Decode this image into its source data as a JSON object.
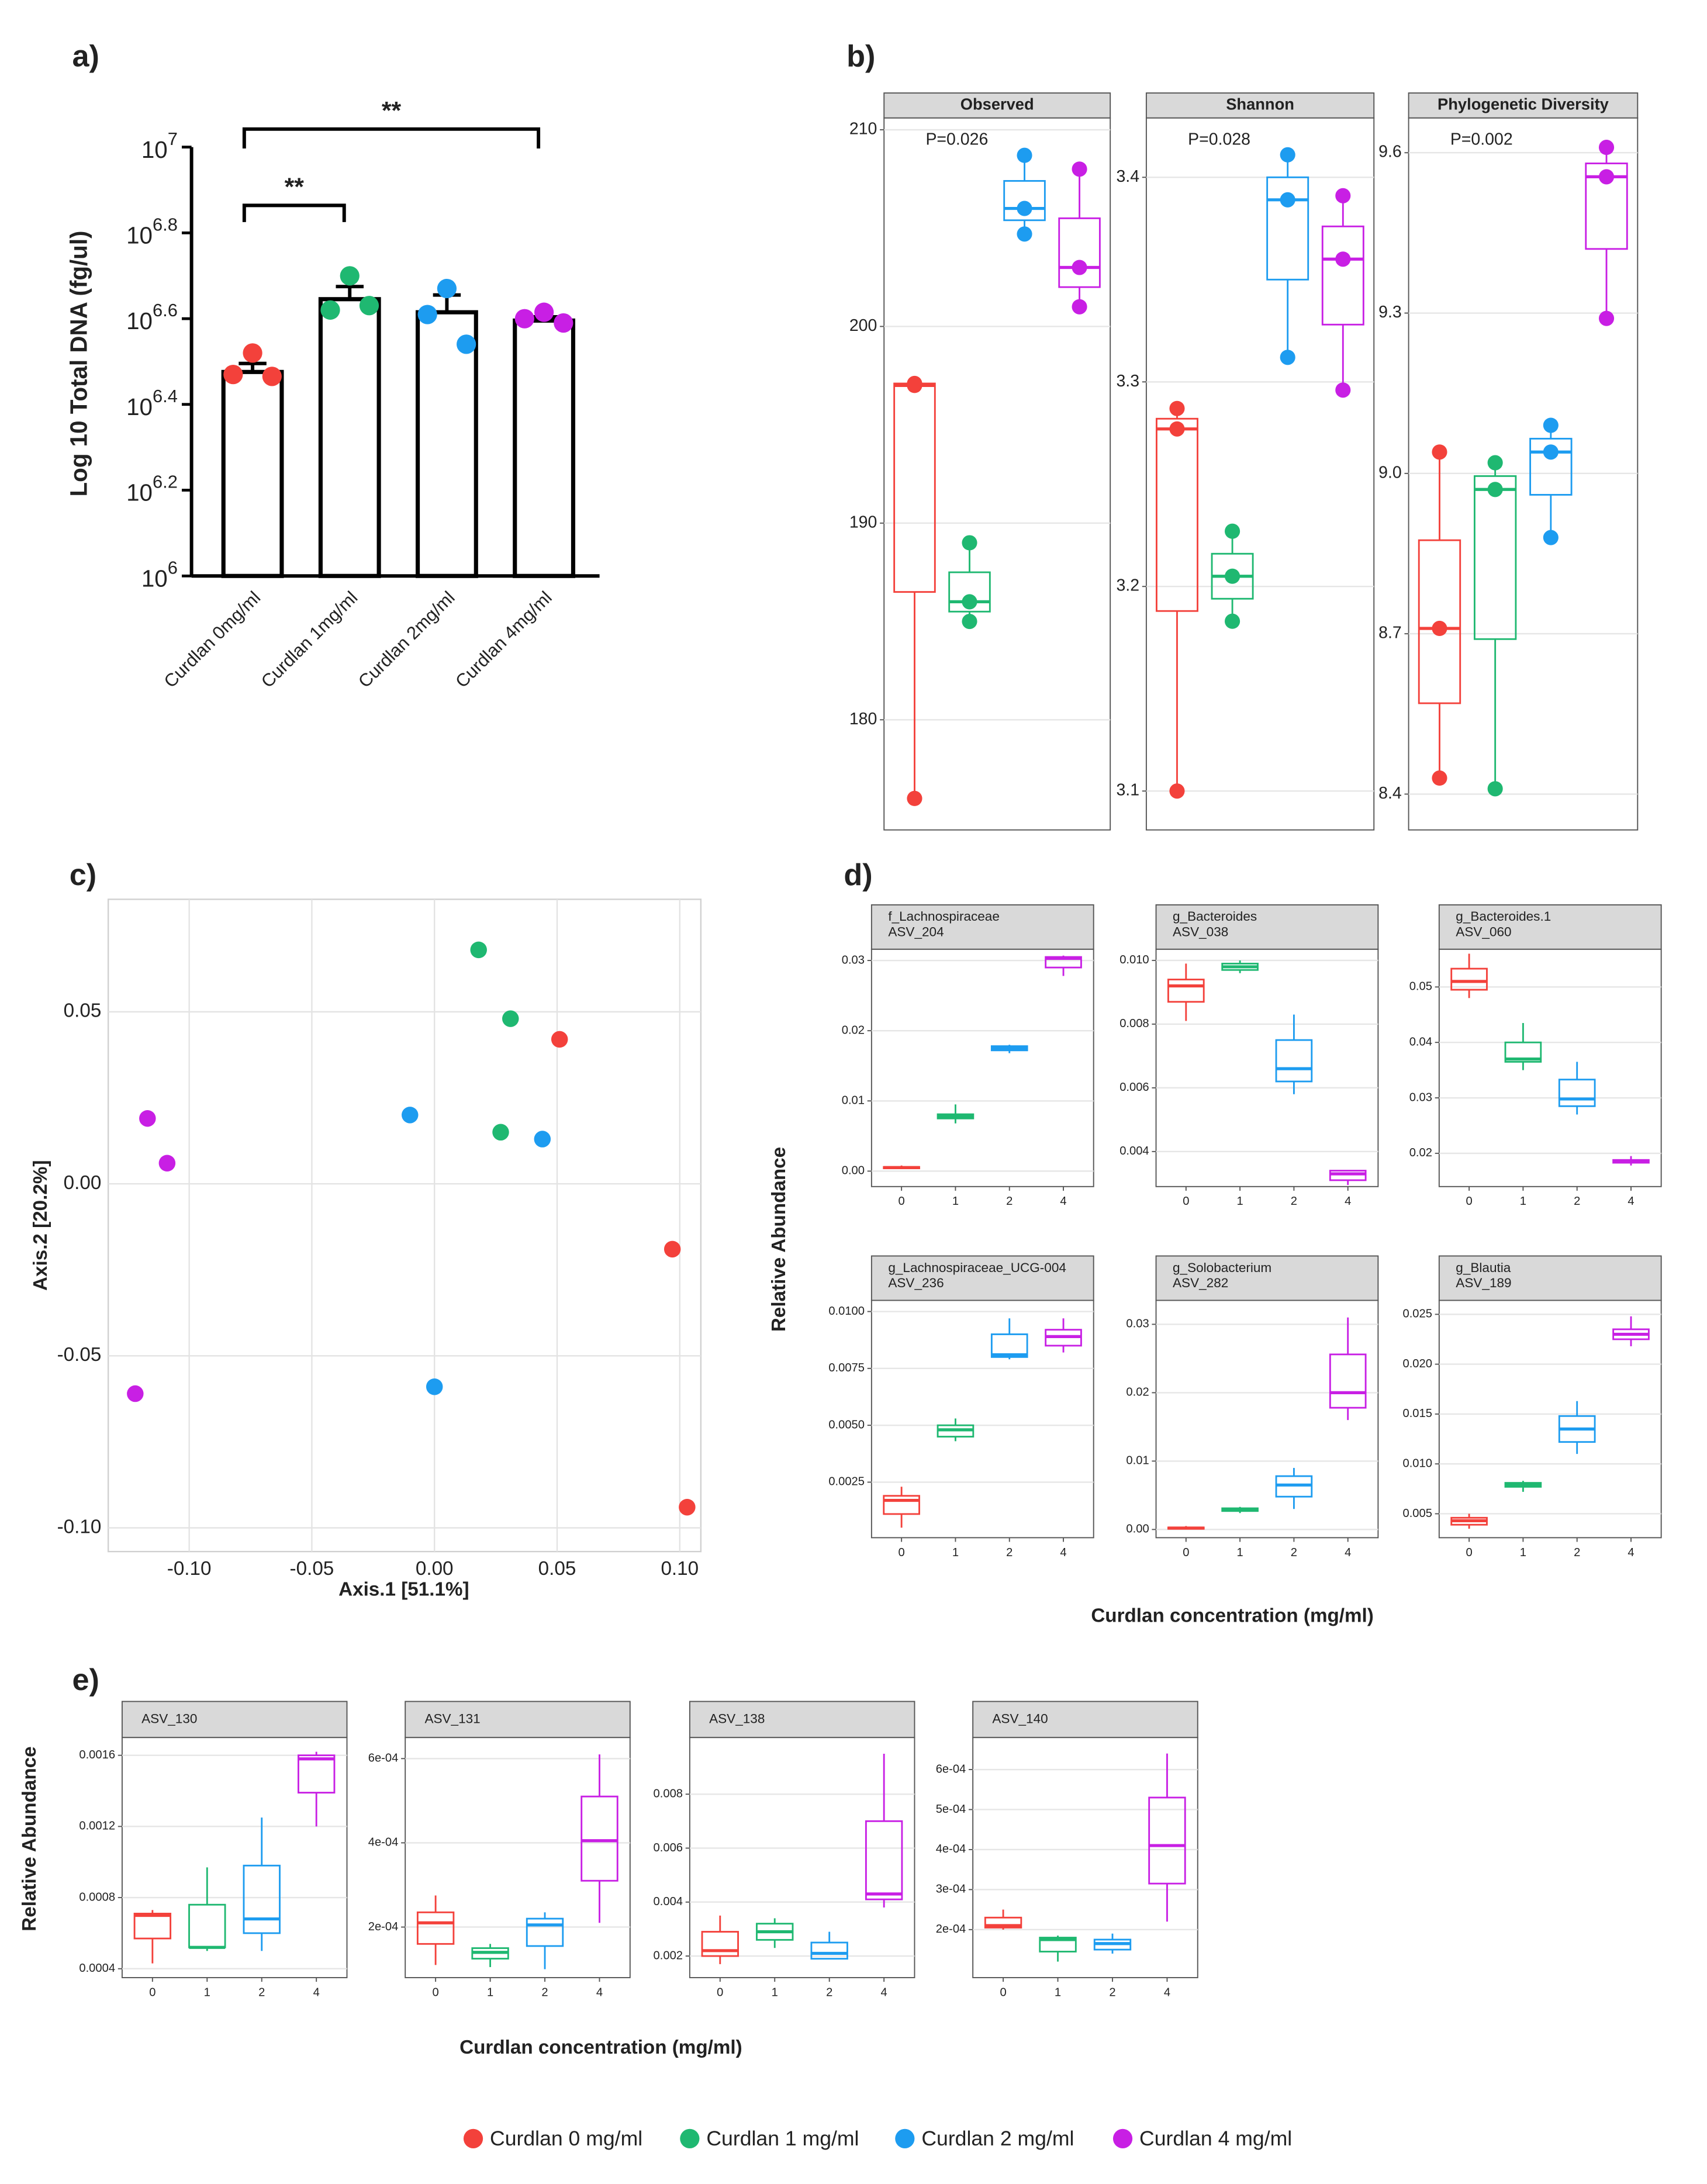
{
  "legend": [
    {
      "name": "Curdlan 0 mg/ml",
      "color": "#f3413b"
    },
    {
      "name": "Curdlan 1 mg/ml",
      "color": "#1fb871"
    },
    {
      "name": "Curdlan 2 mg/ml",
      "color": "#1d9cf0"
    },
    {
      "name": "Curdlan 4 mg/ml",
      "color": "#c81fe4"
    }
  ],
  "chart_data": [
    {
      "type": "bar",
      "label": "a)",
      "ylabel": "Log 10 Total DNA (fg/ul)",
      "categories": [
        "Curdlan 0mg/ml",
        "Curdlan 1mg/ml",
        "Curdlan 2mg/ml",
        "Curdlan 4mg/ml"
      ],
      "values": [
        2990000,
        4420000,
        4120000,
        3940000
      ],
      "errors": [
        140000,
        310000,
        400000,
        80000
      ],
      "points": [
        [
          3310000,
          2950000,
          2920000
        ],
        [
          5010000,
          4170000,
          4270000
        ],
        [
          4680000,
          4070000,
          3470000
        ],
        [
          4120000,
          3980000,
          3890000
        ]
      ],
      "log_scale": true,
      "ylim": [
        1000000,
        10000000
      ],
      "yticks": [
        {
          "value": 1000000,
          "label": "10^6"
        },
        {
          "value": 1584893,
          "label": "10^6.2"
        },
        {
          "value": 2511886,
          "label": "10^6.4"
        },
        {
          "value": 3981072,
          "label": "10^6.6"
        },
        {
          "value": 6309573,
          "label": "10^6.8"
        },
        {
          "value": 10000000,
          "label": "10^7"
        }
      ],
      "color": "#000000",
      "annotations": [
        "**",
        "**"
      ]
    },
    {
      "type": "box",
      "label": "b)",
      "title": "Observed",
      "annotation": "P=0.026",
      "ylim": [
        174.4,
        210.6
      ],
      "yticks": [
        180,
        190,
        200,
        210
      ],
      "grid": true,
      "boxes": [
        {
          "min": 176,
          "q1": 186.5,
          "median": 197,
          "q3": 197.1,
          "max": 197.1,
          "points": [
            197.1,
            197,
            176
          ]
        },
        {
          "min": 185,
          "q1": 185.5,
          "median": 186,
          "q3": 187.5,
          "max": 189,
          "points": [
            189,
            186,
            185
          ]
        },
        {
          "min": 204.7,
          "q1": 205.4,
          "median": 206,
          "q3": 207.4,
          "max": 208.7,
          "points": [
            208.7,
            206,
            204.7
          ]
        },
        {
          "min": 201,
          "q1": 202,
          "median": 203,
          "q3": 205.5,
          "max": 208,
          "points": [
            208,
            203,
            201
          ]
        }
      ]
    },
    {
      "type": "box",
      "title": "Shannon",
      "annotation": "P=0.028",
      "ylim": [
        3.081,
        3.429
      ],
      "yticks": [
        3.1,
        3.2,
        3.3,
        3.4
      ],
      "grid": true,
      "boxes": [
        {
          "min": 3.1,
          "q1": 3.188,
          "median": 3.277,
          "q3": 3.282,
          "max": 3.287,
          "points": [
            3.287,
            3.277,
            3.1
          ]
        },
        {
          "min": 3.183,
          "q1": 3.194,
          "median": 3.205,
          "q3": 3.216,
          "max": 3.227,
          "points": [
            3.227,
            3.205,
            3.183
          ]
        },
        {
          "min": 3.312,
          "q1": 3.35,
          "median": 3.389,
          "q3": 3.4,
          "max": 3.411,
          "points": [
            3.411,
            3.389,
            3.312
          ]
        },
        {
          "min": 3.296,
          "q1": 3.328,
          "median": 3.36,
          "q3": 3.376,
          "max": 3.391,
          "points": [
            3.391,
            3.36,
            3.296
          ]
        }
      ]
    },
    {
      "type": "box",
      "title": "Phylogenetic Diversity",
      "annotation": "P=0.002",
      "ylim": [
        8.333,
        9.665
      ],
      "yticks": [
        8.4,
        8.7,
        {
          "value": 9,
          "label": "9.0"
        },
        9.3,
        9.6
      ],
      "grid": true,
      "boxes": [
        {
          "min": 8.43,
          "q1": 8.57,
          "median": 8.71,
          "q3": 8.875,
          "max": 9.04,
          "points": [
            9.04,
            8.71,
            8.43
          ]
        },
        {
          "min": 8.41,
          "q1": 8.69,
          "median": 8.97,
          "q3": 8.995,
          "max": 9.02,
          "points": [
            9.02,
            8.97,
            8.41
          ]
        },
        {
          "min": 8.88,
          "q1": 8.96,
          "median": 9.04,
          "q3": 9.065,
          "max": 9.09,
          "points": [
            9.09,
            9.04,
            8.88
          ]
        },
        {
          "min": 9.29,
          "q1": 9.42,
          "median": 9.555,
          "q3": 9.58,
          "max": 9.61,
          "points": [
            9.61,
            9.555,
            9.29
          ]
        }
      ]
    },
    {
      "type": "scatter",
      "label": "c)",
      "xlabel": "Axis.1 [51.1%]",
      "ylabel": "Axis.2 [20.2%]",
      "xlim": [
        -0.133,
        0.1086
      ],
      "ylim": [
        -0.1069,
        0.0827
      ],
      "xticks": [
        {
          "value": -0.1,
          "label": "-0.10"
        },
        -0.05,
        {
          "value": 0,
          "label": "0.00"
        },
        0.05,
        {
          "value": 0.1,
          "label": "0.10"
        }
      ],
      "yticks": [
        {
          "value": -0.1,
          "label": "-0.10"
        },
        -0.05,
        {
          "value": 0,
          "label": "0.00"
        },
        0.05
      ],
      "grid": true,
      "series": [
        {
          "x": [
            0.051,
            0.097,
            0.103
          ],
          "values": [
            0.042,
            -0.019,
            -0.094
          ]
        },
        {
          "x": [
            0.018,
            0.031,
            0.027
          ],
          "values": [
            0.068,
            0.048,
            0.015
          ]
        },
        {
          "x": [
            -0.01,
            0.044,
            0
          ],
          "values": [
            0.02,
            0.013,
            -0.059
          ]
        },
        {
          "x": [
            -0.117,
            -0.109,
            -0.122
          ],
          "values": [
            0.019,
            0.006,
            -0.061
          ]
        }
      ]
    },
    {
      "type": "box",
      "label": "d)",
      "ylabel": "Relative Abundance",
      "title": [
        "f_Lachnospiraceae",
        "ASV_204"
      ],
      "categories": [
        "0",
        "1",
        "2",
        "4"
      ],
      "ylim": [
        -0.0022,
        0.0316
      ],
      "yticks": [
        {
          "value": 0,
          "label": "0.00"
        },
        0.01,
        0.02,
        0.03
      ],
      "grid": true,
      "boxes": [
        {
          "min": 0.0003,
          "q1": 0.0004,
          "median": 0.0005,
          "q3": 0.0006,
          "max": 0.0008
        },
        {
          "min": 0.0068,
          "q1": 0.0075,
          "median": 0.0078,
          "q3": 0.0081,
          "max": 0.0095
        },
        {
          "min": 0.0168,
          "q1": 0.0172,
          "median": 0.0175,
          "q3": 0.0178,
          "max": 0.018
        },
        {
          "min": 0.0278,
          "q1": 0.029,
          "median": 0.0303,
          "q3": 0.0305,
          "max": 0.0307
        }
      ]
    },
    {
      "type": "box",
      "title": [
        "g_Bacteroides",
        "ASV_038"
      ],
      "categories": [
        "0",
        "1",
        "2",
        "4"
      ],
      "ylim": [
        0.0029,
        0.01035
      ],
      "yticks": [
        0.004,
        0.006,
        0.008,
        {
          "value": 0.01,
          "label": "0.010"
        }
      ],
      "grid": true,
      "boxes": [
        {
          "min": 0.0081,
          "q1": 0.0087,
          "median": 0.0092,
          "q3": 0.0094,
          "max": 0.0099
        },
        {
          "min": 0.0096,
          "q1": 0.0097,
          "median": 0.0098,
          "q3": 0.0099,
          "max": 0.01
        },
        {
          "min": 0.0058,
          "q1": 0.0062,
          "median": 0.0066,
          "q3": 0.0075,
          "max": 0.0083
        },
        {
          "min": 0.00295,
          "q1": 0.0031,
          "median": 0.0033,
          "q3": 0.0034,
          "max": 0.0034
        }
      ]
    },
    {
      "type": "box",
      "title": [
        "g_Bacteroides.1",
        "ASV_060"
      ],
      "categories": [
        "0",
        "1",
        "2",
        "4"
      ],
      "ylim": [
        0.014,
        0.0568
      ],
      "yticks": [
        0.02,
        0.03,
        0.04,
        0.05
      ],
      "grid": true,
      "boxes": [
        {
          "min": 0.048,
          "q1": 0.0495,
          "median": 0.051,
          "q3": 0.0533,
          "max": 0.056
        },
        {
          "min": 0.035,
          "q1": 0.0365,
          "median": 0.037,
          "q3": 0.04,
          "max": 0.0435
        },
        {
          "min": 0.027,
          "q1": 0.0285,
          "median": 0.0298,
          "q3": 0.0333,
          "max": 0.0365
        },
        {
          "min": 0.0178,
          "q1": 0.0183,
          "median": 0.0185,
          "q3": 0.0188,
          "max": 0.0195
        }
      ]
    },
    {
      "type": "box",
      "title": [
        "g_Lachnospiraceae_UCG-004",
        "ASV_236"
      ],
      "categories": [
        "0",
        "1",
        "2",
        "4"
      ],
      "ylim": [
        6e-05,
        0.01049
      ],
      "yticks": [
        0.0025,
        {
          "value": 0.005,
          "label": "0.0050"
        },
        0.0075,
        {
          "value": 0.01,
          "label": "0.0100"
        }
      ],
      "grid": true,
      "boxes": [
        {
          "min": 0.0005,
          "q1": 0.0011,
          "median": 0.0017,
          "q3": 0.0019,
          "max": 0.0023
        },
        {
          "min": 0.0043,
          "q1": 0.0045,
          "median": 0.0048,
          "q3": 0.005,
          "max": 0.0053
        },
        {
          "min": 0.0079,
          "q1": 0.008,
          "median": 0.0081,
          "q3": 0.009,
          "max": 0.0097
        },
        {
          "min": 0.0082,
          "q1": 0.0085,
          "median": 0.0089,
          "q3": 0.0092,
          "max": 0.0097
        }
      ]
    },
    {
      "type": "box",
      "xlabel": "Curdlan concentration (mg/ml)",
      "title": [
        "g_Solobacterium",
        "ASV_282"
      ],
      "categories": [
        "0",
        "1",
        "2",
        "4"
      ],
      "ylim": [
        -0.0012,
        0.0335
      ],
      "yticks": [
        {
          "value": 0,
          "label": "0.00"
        },
        0.01,
        0.02,
        0.03
      ],
      "grid": true,
      "boxes": [
        {
          "min": 0,
          "q1": 0.0001,
          "median": 0.0002,
          "q3": 0.0003,
          "max": 0.0005
        },
        {
          "min": 0.0024,
          "q1": 0.0027,
          "median": 0.0029,
          "q3": 0.0031,
          "max": 0.0033
        },
        {
          "min": 0.003,
          "q1": 0.0048,
          "median": 0.0065,
          "q3": 0.0078,
          "max": 0.009
        },
        {
          "min": 0.016,
          "q1": 0.0178,
          "median": 0.02,
          "q3": 0.0256,
          "max": 0.031
        }
      ]
    },
    {
      "type": "box",
      "title": [
        "g_Blautia",
        "ASV_189"
      ],
      "categories": [
        "0",
        "1",
        "2",
        "4"
      ],
      "ylim": [
        0.0026,
        0.0264
      ],
      "yticks": [
        0.005,
        {
          "value": 0.01,
          "label": "0.010"
        },
        0.015,
        {
          "value": 0.02,
          "label": "0.020"
        },
        0.025
      ],
      "grid": true,
      "boxes": [
        {
          "min": 0.0035,
          "q1": 0.0039,
          "median": 0.0043,
          "q3": 0.0046,
          "max": 0.005
        },
        {
          "min": 0.0072,
          "q1": 0.0077,
          "median": 0.0079,
          "q3": 0.0081,
          "max": 0.0083
        },
        {
          "min": 0.011,
          "q1": 0.0122,
          "median": 0.0135,
          "q3": 0.0148,
          "max": 0.0163
        },
        {
          "min": 0.0218,
          "q1": 0.0225,
          "median": 0.023,
          "q3": 0.0235,
          "max": 0.0248
        }
      ]
    },
    {
      "type": "box",
      "label": "e)",
      "ylabel": "Relative Abundance",
      "title": "ASV_130",
      "categories": [
        "0",
        "1",
        "2",
        "4"
      ],
      "ylim": [
        0.00035,
        0.0017
      ],
      "yticks": [
        0.0004,
        0.0008,
        0.0012,
        0.0016
      ],
      "grid": true,
      "boxes": [
        {
          "min": 0.00043,
          "q1": 0.00057,
          "median": 0.0007,
          "q3": 0.00071,
          "max": 0.00073
        },
        {
          "min": 0.0005,
          "q1": 0.00052,
          "median": 0.00052,
          "q3": 0.00076,
          "max": 0.00097
        },
        {
          "min": 0.0005,
          "q1": 0.0006,
          "median": 0.00068,
          "q3": 0.00098,
          "max": 0.00125
        },
        {
          "min": 0.0012,
          "q1": 0.00139,
          "median": 0.00158,
          "q3": 0.0016,
          "max": 0.00162
        }
      ]
    },
    {
      "type": "box",
      "xlabel": "Curdlan concentration (mg/ml)",
      "title": "ASV_131",
      "categories": [
        "0",
        "1",
        "2",
        "4"
      ],
      "ylim": [
        8e-05,
        0.00065
      ],
      "yticks": [
        {
          "value": 0.0002,
          "label": "2e-04"
        },
        {
          "value": 0.0004,
          "label": "4e-04"
        },
        {
          "value": 0.0006,
          "label": "6e-04"
        }
      ],
      "grid": true,
      "boxes": [
        {
          "min": 0.00011,
          "q1": 0.00016,
          "median": 0.00021,
          "q3": 0.000235,
          "max": 0.000275
        },
        {
          "min": 0.000105,
          "q1": 0.000125,
          "median": 0.00014,
          "q3": 0.00015,
          "max": 0.00016
        },
        {
          "min": 0.0001,
          "q1": 0.000155,
          "median": 0.000205,
          "q3": 0.00022,
          "max": 0.000235
        },
        {
          "min": 0.00021,
          "q1": 0.00031,
          "median": 0.000405,
          "q3": 0.00051,
          "max": 0.00061
        }
      ]
    },
    {
      "type": "box",
      "title": "ASV_138",
      "categories": [
        "0",
        "1",
        "2",
        "4"
      ],
      "ylim": [
        0.0012,
        0.0101
      ],
      "yticks": [
        0.002,
        0.004,
        0.006,
        0.008
      ],
      "grid": true,
      "boxes": [
        {
          "min": 0.0017,
          "q1": 0.002,
          "median": 0.0022,
          "q3": 0.0029,
          "max": 0.0035
        },
        {
          "min": 0.0023,
          "q1": 0.0026,
          "median": 0.0029,
          "q3": 0.0032,
          "max": 0.0034
        },
        {
          "min": 0.0019,
          "q1": 0.0019,
          "median": 0.0021,
          "q3": 0.0025,
          "max": 0.0029
        },
        {
          "min": 0.0038,
          "q1": 0.0041,
          "median": 0.0043,
          "q3": 0.007,
          "max": 0.0095
        }
      ]
    },
    {
      "type": "box",
      "title": "ASV_140",
      "categories": [
        "0",
        "1",
        "2",
        "4"
      ],
      "ylim": [
        8e-05,
        0.00068
      ],
      "yticks": [
        {
          "value": 0.0002,
          "label": "2e-04"
        },
        {
          "value": 0.0003,
          "label": "3e-04"
        },
        {
          "value": 0.0004,
          "label": "4e-04"
        },
        {
          "value": 0.0005,
          "label": "5e-04"
        },
        {
          "value": 0.0006,
          "label": "6e-04"
        }
      ],
      "grid": true,
      "boxes": [
        {
          "min": 0.0002,
          "q1": 0.000205,
          "median": 0.00021,
          "q3": 0.00023,
          "max": 0.00025
        },
        {
          "min": 0.00012,
          "q1": 0.000145,
          "median": 0.000175,
          "q3": 0.00018,
          "max": 0.000185
        },
        {
          "min": 0.00014,
          "q1": 0.00015,
          "median": 0.000165,
          "q3": 0.000175,
          "max": 0.00019
        },
        {
          "min": 0.00022,
          "q1": 0.000315,
          "median": 0.00041,
          "q3": 0.00053,
          "max": 0.00064
        }
      ]
    }
  ]
}
